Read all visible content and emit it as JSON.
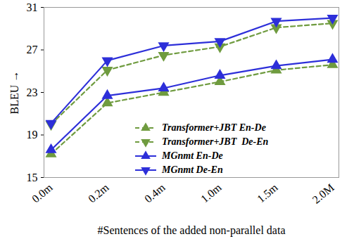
{
  "chart_data": {
    "type": "line",
    "x_label": "#Sentences of the added non-parallel data",
    "y_label": "BLEU",
    "categories": [
      "0.0m",
      "0.2m",
      "0.4m",
      "1.0m",
      "1.5m",
      "2.0M"
    ],
    "ylim": [
      15,
      31
    ],
    "yticks": [
      15,
      19,
      23,
      27,
      31
    ],
    "grid": false,
    "legend": "bottom-right",
    "series": [
      {
        "name": "Transformer+JBT En-De",
        "color": "#6f9b3f",
        "marker": "triangle-up",
        "line_style": "dashed",
        "values": [
          17.2,
          22.0,
          23.0,
          24.0,
          25.1,
          25.6
        ]
      },
      {
        "name": "Transformer+JBT  De-En",
        "color": "#6f9b3f",
        "marker": "triangle-down",
        "line_style": "dashed",
        "values": [
          20.0,
          25.1,
          26.5,
          27.3,
          29.1,
          29.5
        ]
      },
      {
        "name": "MGnmt En-De",
        "color": "#2d2fd9",
        "marker": "triangle-up",
        "line_style": "solid",
        "values": [
          17.6,
          22.7,
          23.4,
          24.6,
          25.5,
          26.1
        ]
      },
      {
        "name": "MGnmt De-En",
        "color": "#2d2fd9",
        "marker": "triangle-down",
        "line_style": "solid",
        "values": [
          20.1,
          26.0,
          27.4,
          27.8,
          29.7,
          30.0
        ]
      }
    ]
  }
}
